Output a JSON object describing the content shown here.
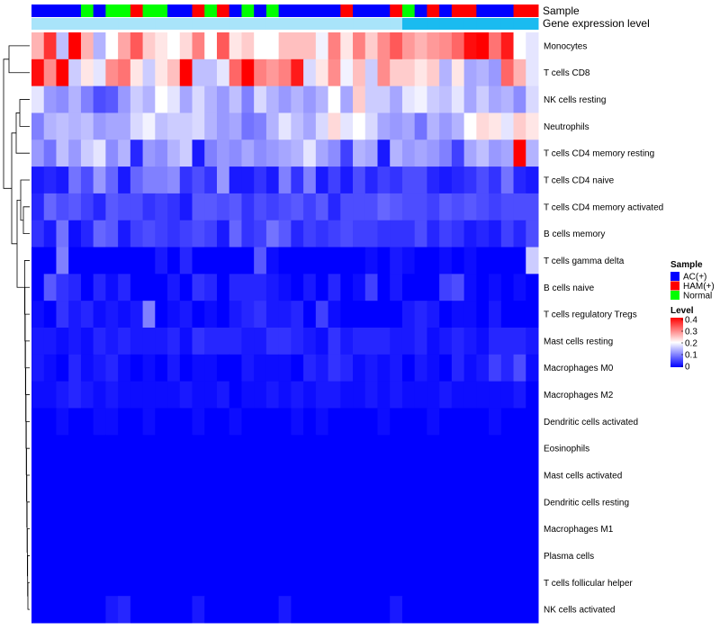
{
  "chart_data": {
    "type": "heatmap",
    "title": "",
    "annotation_labels": {
      "sample": "Sample",
      "expression": "Gene expression level"
    },
    "sample_legend": {
      "title": "Sample",
      "entries": [
        {
          "name": "AC(+)",
          "color": "#0000ff"
        },
        {
          "name": "HAM(+)",
          "color": "#ff0000"
        },
        {
          "name": "Normal",
          "color": "#00ff00"
        }
      ]
    },
    "level_legend": {
      "title": "Level",
      "range": [
        0,
        0.4
      ],
      "ticks": [
        "0.4",
        "0.3",
        "0.2",
        "0.1",
        "0"
      ],
      "colors": {
        "low": "#0000ff",
        "mid": "#ffffff",
        "high": "#ff0000"
      }
    },
    "expression_bar_colors": [
      "#1abbf0",
      "#a9e4fa"
    ],
    "sample_groups": [
      "AC(+)",
      "AC(+)",
      "AC(+)",
      "AC(+)",
      "Normal",
      "AC(+)",
      "Normal",
      "Normal",
      "HAM(+)",
      "Normal",
      "Normal",
      "AC(+)",
      "AC(+)",
      "HAM(+)",
      "Normal",
      "HAM(+)",
      "AC(+)",
      "Normal",
      "AC(+)",
      "Normal",
      "AC(+)",
      "AC(+)",
      "AC(+)",
      "AC(+)",
      "AC(+)",
      "HAM(+)",
      "AC(+)",
      "AC(+)",
      "AC(+)",
      "HAM(+)",
      "Normal",
      "AC(+)",
      "HAM(+)",
      "AC(+)",
      "HAM(+)",
      "HAM(+)",
      "AC(+)",
      "AC(+)",
      "AC(+)",
      "HAM(+)",
      "HAM(+)"
    ],
    "expression_levels": [
      1,
      1,
      1,
      1,
      1,
      1,
      1,
      1,
      1,
      1,
      1,
      1,
      1,
      1,
      1,
      1,
      1,
      1,
      1,
      1,
      1,
      1,
      1,
      1,
      1,
      1,
      1,
      1,
      1,
      1,
      0,
      0,
      0,
      0,
      0,
      0,
      0,
      0,
      0,
      0,
      0
    ],
    "rows": [
      {
        "name": "Monocytes",
        "values": [
          0.26,
          0.36,
          0.15,
          0.4,
          0.26,
          0.14,
          0.2,
          0.27,
          0.33,
          0.24,
          0.22,
          0.2,
          0.23,
          0.3,
          0.2,
          0.33,
          0.22,
          0.24,
          0.2,
          0.2,
          0.25,
          0.25,
          0.25,
          0.19,
          0.3,
          0.22,
          0.3,
          0.24,
          0.29,
          0.33,
          0.28,
          0.26,
          0.28,
          0.29,
          0.32,
          0.39,
          0.4,
          0.31,
          0.38,
          0.2,
          0.18
        ]
      },
      {
        "name": "T cells CD8",
        "values": [
          0.39,
          0.29,
          0.4,
          0.16,
          0.22,
          0.18,
          0.29,
          0.31,
          0.22,
          0.16,
          0.22,
          0.25,
          0.4,
          0.15,
          0.15,
          0.18,
          0.32,
          0.4,
          0.3,
          0.28,
          0.3,
          0.38,
          0.17,
          0.22,
          0.29,
          0.19,
          0.25,
          0.16,
          0.29,
          0.24,
          0.24,
          0.22,
          0.24,
          0.14,
          0.22,
          0.13,
          0.14,
          0.12,
          0.32,
          0.26,
          0.18
        ]
      },
      {
        "name": "NK cells resting",
        "values": [
          0.18,
          0.12,
          0.11,
          0.14,
          0.1,
          0.06,
          0.07,
          0.12,
          0.16,
          0.14,
          0.2,
          0.18,
          0.13,
          0.17,
          0.14,
          0.12,
          0.15,
          0.1,
          0.17,
          0.14,
          0.12,
          0.14,
          0.12,
          0.14,
          0.2,
          0.13,
          0.24,
          0.16,
          0.16,
          0.13,
          0.18,
          0.19,
          0.16,
          0.15,
          0.18,
          0.13,
          0.16,
          0.13,
          0.14,
          0.11,
          0.17
        ]
      },
      {
        "name": "Neutrophils",
        "values": [
          0.1,
          0.14,
          0.15,
          0.14,
          0.15,
          0.12,
          0.13,
          0.13,
          0.17,
          0.19,
          0.15,
          0.16,
          0.16,
          0.17,
          0.14,
          0.12,
          0.13,
          0.09,
          0.1,
          0.14,
          0.18,
          0.15,
          0.13,
          0.17,
          0.23,
          0.18,
          0.2,
          0.17,
          0.13,
          0.12,
          0.13,
          0.09,
          0.14,
          0.12,
          0.14,
          0.2,
          0.23,
          0.22,
          0.18,
          0.24,
          0.22
        ]
      },
      {
        "name": "T cells CD4 memory resting",
        "values": [
          0.12,
          0.09,
          0.15,
          0.12,
          0.16,
          0.18,
          0.11,
          0.14,
          0.03,
          0.12,
          0.11,
          0.14,
          0.16,
          0.02,
          0.1,
          0.12,
          0.11,
          0.13,
          0.11,
          0.12,
          0.13,
          0.14,
          0.18,
          0.13,
          0.11,
          0.05,
          0.14,
          0.13,
          0.02,
          0.14,
          0.12,
          0.13,
          0.12,
          0.1,
          0.05,
          0.13,
          0.15,
          0.12,
          0.13,
          0.4,
          0.14
        ]
      },
      {
        "name": "T cells CD4 naive",
        "values": [
          0.02,
          0.03,
          0.02,
          0.09,
          0.06,
          0.12,
          0.08,
          0.02,
          0.08,
          0.1,
          0.1,
          0.11,
          0.04,
          0.06,
          0.04,
          0.12,
          0.02,
          0.02,
          0.04,
          0.02,
          0.1,
          0.04,
          0.1,
          0.02,
          0.05,
          0.02,
          0.06,
          0.03,
          0.05,
          0.04,
          0.06,
          0.06,
          0.03,
          0.02,
          0.03,
          0.04,
          0.06,
          0.04,
          0.09,
          0.03,
          0.02
        ]
      },
      {
        "name": "T cells CD4 memory activated",
        "values": [
          0.03,
          0.08,
          0.06,
          0.07,
          0.05,
          0.03,
          0.07,
          0.06,
          0.06,
          0.04,
          0.05,
          0.04,
          0.02,
          0.07,
          0.07,
          0.06,
          0.07,
          0.04,
          0.06,
          0.05,
          0.06,
          0.07,
          0.05,
          0.07,
          0.03,
          0.06,
          0.06,
          0.06,
          0.08,
          0.07,
          0.06,
          0.06,
          0.05,
          0.07,
          0.06,
          0.07,
          0.06,
          0.05,
          0.06,
          0.06,
          0.06
        ]
      },
      {
        "name": "B cells memory",
        "values": [
          0.04,
          0.02,
          0.09,
          0.01,
          0.03,
          0.08,
          0.07,
          0.02,
          0.05,
          0.06,
          0.05,
          0.04,
          0.05,
          0.06,
          0.05,
          0.02,
          0.08,
          0.04,
          0.05,
          0.09,
          0.07,
          0.03,
          0.05,
          0.04,
          0.05,
          0.06,
          0.05,
          0.05,
          0.04,
          0.04,
          0.04,
          0.06,
          0.03,
          0.05,
          0.04,
          0.02,
          0.03,
          0.02,
          0.05,
          0.03,
          0.06
        ]
      },
      {
        "name": "T cells gamma delta",
        "values": [
          0.0,
          0.0,
          0.1,
          0.0,
          0.0,
          0.0,
          0.0,
          0.0,
          0.0,
          0.0,
          0.02,
          0.0,
          0.03,
          0.0,
          0.0,
          0.0,
          0.0,
          0.0,
          0.07,
          0.01,
          0.0,
          0.0,
          0.0,
          0.0,
          0.0,
          0.0,
          0.0,
          0.01,
          0.0,
          0.02,
          0.01,
          0.0,
          0.0,
          0.01,
          0.0,
          0.01,
          0.0,
          0.0,
          0.0,
          0.0,
          0.16
        ]
      },
      {
        "name": "B cells naive",
        "values": [
          0.0,
          0.07,
          0.04,
          0.03,
          0.0,
          0.03,
          0.01,
          0.03,
          0.0,
          0.0,
          0.0,
          0.02,
          0.0,
          0.04,
          0.03,
          0.0,
          0.03,
          0.03,
          0.03,
          0.02,
          0.01,
          0.0,
          0.02,
          0.0,
          0.03,
          0.0,
          0.01,
          0.05,
          0.0,
          0.02,
          0.0,
          0.0,
          0.0,
          0.05,
          0.06,
          0.01,
          0.0,
          0.01,
          0.0,
          0.01,
          0.0
        ]
      },
      {
        "name": "T cells regulatory  Tregs",
        "values": [
          0.01,
          0.0,
          0.04,
          0.02,
          0.03,
          0.01,
          0.02,
          0.01,
          0.02,
          0.1,
          0.0,
          0.01,
          0.02,
          0.0,
          0.01,
          0.0,
          0.02,
          0.03,
          0.04,
          0.02,
          0.02,
          0.03,
          0.0,
          0.05,
          0.01,
          0.0,
          0.0,
          0.0,
          0.0,
          0.0,
          0.02,
          0.03,
          0.02,
          0.0,
          0.01,
          0.01,
          0.0,
          0.02,
          0.0,
          0.0,
          0.0
        ]
      },
      {
        "name": "Mast cells resting",
        "values": [
          0.02,
          0.02,
          0.01,
          0.02,
          0.01,
          0.03,
          0.02,
          0.03,
          0.02,
          0.02,
          0.02,
          0.03,
          0.01,
          0.04,
          0.03,
          0.03,
          0.03,
          0.02,
          0.02,
          0.04,
          0.04,
          0.03,
          0.02,
          0.01,
          0.04,
          0.02,
          0.03,
          0.03,
          0.03,
          0.02,
          0.02,
          0.03,
          0.01,
          0.02,
          0.03,
          0.02,
          0.01,
          0.03,
          0.03,
          0.03,
          0.02
        ]
      },
      {
        "name": "Macrophages M0",
        "values": [
          0.02,
          0.01,
          0.0,
          0.03,
          0.01,
          0.02,
          0.03,
          0.01,
          0.0,
          0.01,
          0.0,
          0.02,
          0.0,
          0.01,
          0.01,
          0.0,
          0.0,
          0.02,
          0.01,
          0.01,
          0.01,
          0.0,
          0.03,
          0.02,
          0.04,
          0.03,
          0.01,
          0.02,
          0.01,
          0.02,
          0.0,
          0.02,
          0.01,
          0.0,
          0.03,
          0.01,
          0.02,
          0.05,
          0.03,
          0.06,
          0.01
        ]
      },
      {
        "name": "Macrophages M2",
        "values": [
          0.01,
          0.01,
          0.02,
          0.03,
          0.02,
          0.01,
          0.02,
          0.01,
          0.01,
          0.01,
          0.01,
          0.01,
          0.02,
          0.01,
          0.01,
          0.02,
          0.0,
          0.01,
          0.01,
          0.02,
          0.01,
          0.02,
          0.01,
          0.02,
          0.02,
          0.01,
          0.01,
          0.02,
          0.01,
          0.02,
          0.01,
          0.01,
          0.01,
          0.02,
          0.01,
          0.01,
          0.01,
          0.01,
          0.01,
          0.02,
          0.0
        ]
      },
      {
        "name": "Dendritic cells activated",
        "values": [
          0.0,
          0.0,
          0.01,
          0.0,
          0.0,
          0.01,
          0.01,
          0.0,
          0.0,
          0.01,
          0.0,
          0.0,
          0.0,
          0.01,
          0.0,
          0.0,
          0.01,
          0.0,
          0.0,
          0.0,
          0.0,
          0.01,
          0.0,
          0.01,
          0.0,
          0.0,
          0.0,
          0.0,
          0.01,
          0.0,
          0.0,
          0.0,
          0.01,
          0.0,
          0.0,
          0.0,
          0.0,
          0.01,
          0.0,
          0.0,
          0.0
        ]
      },
      {
        "name": "Eosinophils",
        "values": [
          0.0,
          0.0,
          0.0,
          0.0,
          0.0,
          0.0,
          0.0,
          0.0,
          0.0,
          0.0,
          0.0,
          0.0,
          0.0,
          0.0,
          0.0,
          0.0,
          0.0,
          0.0,
          0.0,
          0.0,
          0.0,
          0.0,
          0.0,
          0.0,
          0.0,
          0.0,
          0.0,
          0.0,
          0.0,
          0.0,
          0.0,
          0.0,
          0.0,
          0.0,
          0.0,
          0.0,
          0.0,
          0.0,
          0.0,
          0.0,
          0.0
        ]
      },
      {
        "name": "Mast cells activated",
        "values": [
          0.0,
          0.0,
          0.0,
          0.0,
          0.0,
          0.0,
          0.0,
          0.0,
          0.0,
          0.0,
          0.0,
          0.0,
          0.0,
          0.0,
          0.0,
          0.0,
          0.0,
          0.0,
          0.0,
          0.0,
          0.0,
          0.0,
          0.0,
          0.0,
          0.0,
          0.0,
          0.0,
          0.0,
          0.0,
          0.0,
          0.0,
          0.0,
          0.0,
          0.0,
          0.0,
          0.0,
          0.0,
          0.0,
          0.0,
          0.0,
          0.0
        ]
      },
      {
        "name": "Dendritic cells resting",
        "values": [
          0.0,
          0.0,
          0.0,
          0.0,
          0.0,
          0.0,
          0.0,
          0.0,
          0.0,
          0.0,
          0.0,
          0.0,
          0.0,
          0.0,
          0.0,
          0.0,
          0.0,
          0.0,
          0.0,
          0.0,
          0.0,
          0.0,
          0.0,
          0.0,
          0.0,
          0.0,
          0.0,
          0.0,
          0.0,
          0.0,
          0.0,
          0.0,
          0.0,
          0.0,
          0.0,
          0.0,
          0.0,
          0.0,
          0.0,
          0.0,
          0.0
        ]
      },
      {
        "name": "Macrophages M1",
        "values": [
          0.0,
          0.0,
          0.0,
          0.0,
          0.0,
          0.0,
          0.0,
          0.0,
          0.0,
          0.0,
          0.0,
          0.0,
          0.0,
          0.0,
          0.0,
          0.0,
          0.0,
          0.0,
          0.0,
          0.0,
          0.0,
          0.0,
          0.0,
          0.0,
          0.0,
          0.0,
          0.0,
          0.0,
          0.0,
          0.0,
          0.0,
          0.0,
          0.0,
          0.0,
          0.0,
          0.0,
          0.0,
          0.0,
          0.0,
          0.0,
          0.0
        ]
      },
      {
        "name": "Plasma cells",
        "values": [
          0.0,
          0.0,
          0.0,
          0.0,
          0.0,
          0.0,
          0.0,
          0.0,
          0.0,
          0.0,
          0.0,
          0.0,
          0.0,
          0.0,
          0.0,
          0.0,
          0.0,
          0.0,
          0.0,
          0.0,
          0.0,
          0.0,
          0.0,
          0.0,
          0.0,
          0.0,
          0.0,
          0.0,
          0.0,
          0.0,
          0.0,
          0.0,
          0.0,
          0.0,
          0.0,
          0.0,
          0.0,
          0.0,
          0.0,
          0.0,
          0.0
        ]
      },
      {
        "name": "T cells follicular helper",
        "values": [
          0.0,
          0.0,
          0.0,
          0.0,
          0.0,
          0.0,
          0.0,
          0.0,
          0.0,
          0.0,
          0.0,
          0.0,
          0.0,
          0.0,
          0.0,
          0.0,
          0.0,
          0.0,
          0.0,
          0.0,
          0.0,
          0.0,
          0.0,
          0.0,
          0.0,
          0.0,
          0.0,
          0.0,
          0.0,
          0.0,
          0.0,
          0.0,
          0.0,
          0.0,
          0.0,
          0.0,
          0.0,
          0.0,
          0.0,
          0.0,
          0.0
        ]
      },
      {
        "name": "NK cells activated",
        "values": [
          0.0,
          0.0,
          0.0,
          0.0,
          0.0,
          0.0,
          0.02,
          0.03,
          0.0,
          0.0,
          0.0,
          0.0,
          0.0,
          0.02,
          0.0,
          0.0,
          0.0,
          0.0,
          0.0,
          0.0,
          0.02,
          0.0,
          0.0,
          0.0,
          0.0,
          0.0,
          0.0,
          0.0,
          0.0,
          0.02,
          0.0,
          0.0,
          0.0,
          0.0,
          0.0,
          0.0,
          0.0,
          0.0,
          0.0,
          0.0,
          0.0
        ]
      }
    ]
  }
}
